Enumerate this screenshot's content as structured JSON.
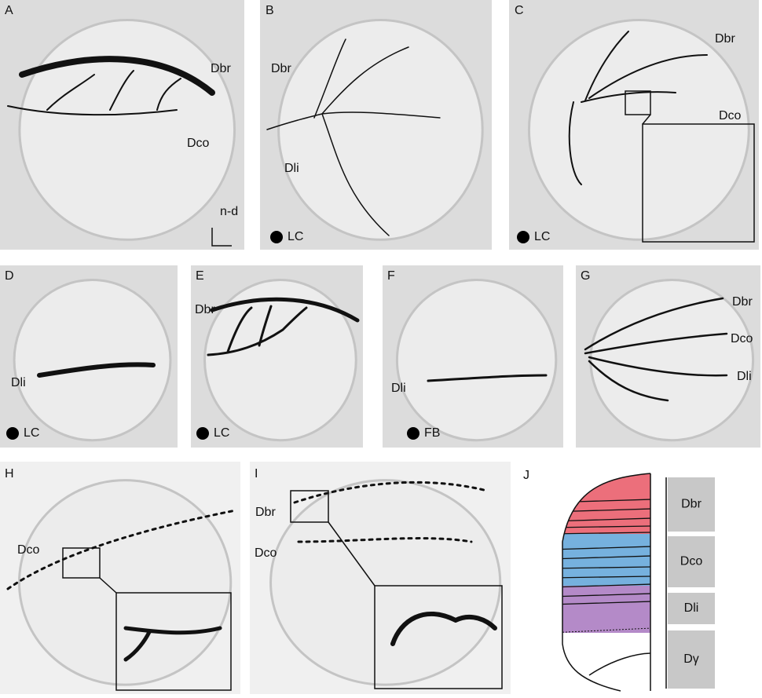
{
  "panels": [
    {
      "letter": "A",
      "labels": [
        "Dbr",
        "Dco",
        "n-d"
      ]
    },
    {
      "letter": "B",
      "labels": [
        "Dbr",
        "Dli"
      ],
      "marker": "LC"
    },
    {
      "letter": "C",
      "labels": [
        "Dbr",
        "Dco"
      ],
      "marker": "LC"
    },
    {
      "letter": "D",
      "labels": [
        "Dli"
      ],
      "marker": "LC"
    },
    {
      "letter": "E",
      "labels": [
        "Dbr"
      ],
      "marker": "LC"
    },
    {
      "letter": "F",
      "labels": [
        "Dli"
      ],
      "marker": "FB"
    },
    {
      "letter": "G",
      "labels": [
        "Dbr",
        "Dco",
        "Dli"
      ]
    },
    {
      "letter": "H",
      "labels": [
        "Dco"
      ]
    },
    {
      "letter": "I",
      "labels": [
        "Dbr",
        "Dco"
      ]
    }
  ],
  "schematic": {
    "letter": "J",
    "layers": [
      "Dbr",
      "Dco",
      "Dli",
      "Dγ"
    ]
  }
}
